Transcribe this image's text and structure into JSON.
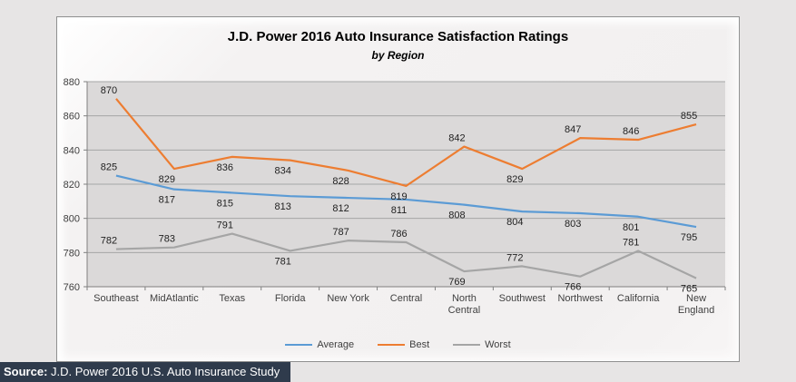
{
  "page": {
    "background": "#e7e5e5"
  },
  "chart_data": {
    "type": "line",
    "title": "J.D. Power 2016 Auto Insurance Satisfaction Ratings",
    "subtitle": "by Region",
    "categories": [
      "Southeast",
      "MidAtlantic",
      "Texas",
      "Florida",
      "New York",
      "Central",
      "North Central",
      "Southwest",
      "Northwest",
      "California",
      "New England"
    ],
    "series": [
      {
        "name": "Average",
        "color": "#5b9bd5",
        "values": [
          825,
          817,
          815,
          813,
          812,
          811,
          808,
          804,
          803,
          801,
          795
        ],
        "label_positions": [
          "above",
          "below",
          "below",
          "below",
          "below",
          "below",
          "below",
          "below",
          "below",
          "below",
          "below"
        ]
      },
      {
        "name": "Best",
        "color": "#ed7d31",
        "values": [
          870,
          829,
          836,
          834,
          828,
          819,
          842,
          829,
          847,
          846,
          855
        ],
        "label_positions": [
          "above",
          "below",
          "below",
          "below",
          "below",
          "below",
          "above",
          "below",
          "above",
          "above",
          "above"
        ]
      },
      {
        "name": "Worst",
        "color": "#a5a5a5",
        "values": [
          782,
          783,
          791,
          781,
          787,
          786,
          769,
          772,
          766,
          781,
          765
        ],
        "label_positions": [
          "above",
          "above",
          "above",
          "below",
          "above",
          "above",
          "below",
          "above",
          "below",
          "above",
          "below"
        ]
      }
    ],
    "y_axis": {
      "min": 760,
      "max": 880,
      "step": 20,
      "ticks": [
        880,
        860,
        840,
        820,
        800,
        780,
        760
      ]
    },
    "grid": true,
    "legend_position": "bottom",
    "plot_background": "#dbd9d9",
    "gridline_color": "#a6a6a6",
    "axis_color": "#808080"
  },
  "source_bar": {
    "label": "Source:",
    "text": " J.D. Power 2016 U.S. Auto Insurance Study",
    "background": "#2f3b4c"
  }
}
